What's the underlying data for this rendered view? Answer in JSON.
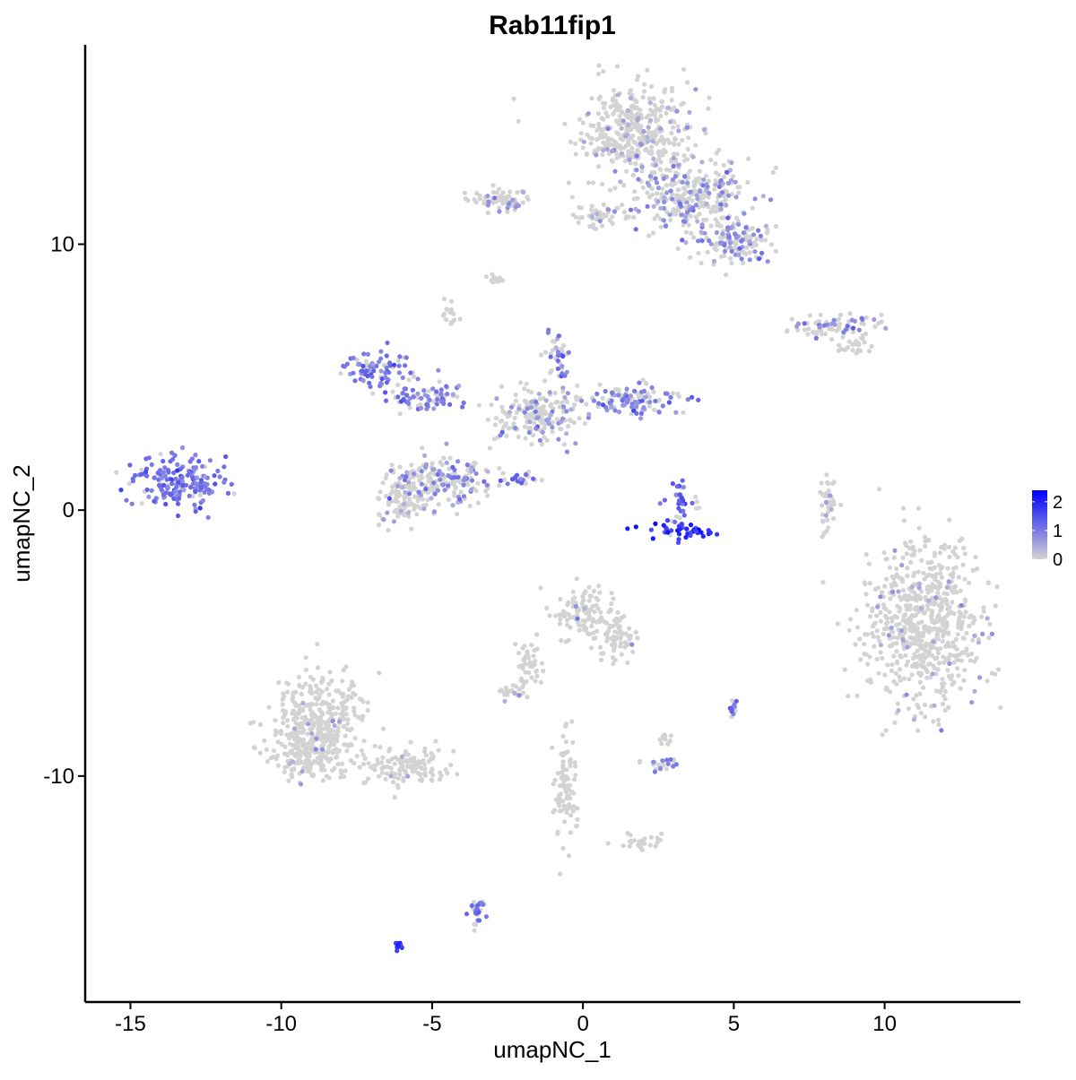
{
  "chart_data": {
    "type": "scatter",
    "title": "Rab11fip1",
    "xlabel": "umapNC_1",
    "ylabel": "umapNC_2",
    "xlim": [
      -16.5,
      14.5
    ],
    "ylim": [
      -18.5,
      17.5
    ],
    "x_ticks": [
      -15,
      -10,
      -5,
      0,
      5,
      10
    ],
    "y_ticks": [
      -10,
      0,
      10
    ],
    "x_tick_labels": [
      "-15",
      "-10",
      "-5",
      "0",
      "5",
      "10"
    ],
    "y_tick_labels": [
      "-10",
      "0",
      "10"
    ],
    "grid": false,
    "legend": {
      "position": "right",
      "type": "colorbar",
      "min": 0,
      "max": 2.4,
      "ticks": [
        0,
        1,
        2
      ],
      "tick_labels": [
        "0",
        "1",
        "2"
      ],
      "low_color": "#d3d3d3",
      "high_color": "#0000ff"
    },
    "point_color_low": "#d3d3d3",
    "point_color_high": "#0000ff",
    "clusters": [
      {
        "center": [
          1.8,
          14.2
        ],
        "spread": [
          1.3,
          1.2
        ],
        "expression": 0.45,
        "expressed_fraction": 0.12
      },
      {
        "center": [
          3.6,
          11.8
        ],
        "spread": [
          1.2,
          0.9
        ],
        "expression": 0.7,
        "expressed_fraction": 0.3
      },
      {
        "center": [
          5.0,
          10.1
        ],
        "spread": [
          0.9,
          0.6
        ],
        "expression": 0.8,
        "expressed_fraction": 0.35
      },
      {
        "center": [
          -2.7,
          11.7
        ],
        "spread": [
          0.7,
          0.35
        ],
        "expression": 0.7,
        "expressed_fraction": 0.12
      },
      {
        "center": [
          0.7,
          11.1
        ],
        "spread": [
          0.6,
          0.3
        ],
        "expression": 0.5,
        "expressed_fraction": 0.1
      },
      {
        "center": [
          8.4,
          6.9
        ],
        "spread": [
          1.1,
          0.25
        ],
        "expression": 0.8,
        "expressed_fraction": 0.35
      },
      {
        "center": [
          -6.8,
          5.3
        ],
        "spread": [
          0.7,
          0.5
        ],
        "expression": 1.0,
        "expressed_fraction": 0.75
      },
      {
        "center": [
          -5.1,
          4.2
        ],
        "spread": [
          0.8,
          0.35
        ],
        "expression": 1.0,
        "expressed_fraction": 0.6
      },
      {
        "center": [
          -4.6,
          1.2
        ],
        "spread": [
          1.1,
          0.6
        ],
        "expression": 0.8,
        "expressed_fraction": 0.35
      },
      {
        "center": [
          -5.9,
          0.4
        ],
        "spread": [
          0.6,
          0.7
        ],
        "expression": 0.5,
        "expressed_fraction": 0.08
      },
      {
        "center": [
          -1.4,
          3.6
        ],
        "spread": [
          1.0,
          0.7
        ],
        "expression": 0.7,
        "expressed_fraction": 0.25
      },
      {
        "center": [
          1.6,
          4.2
        ],
        "spread": [
          1.1,
          0.4
        ],
        "expression": 0.9,
        "expressed_fraction": 0.4
      },
      {
        "center": [
          -0.9,
          5.7
        ],
        "spread": [
          0.3,
          0.5
        ],
        "expression": 1.0,
        "expressed_fraction": 0.4
      },
      {
        "center": [
          -2.0,
          1.2
        ],
        "spread": [
          0.4,
          0.2
        ],
        "expression": 1.2,
        "expressed_fraction": 0.6
      },
      {
        "center": [
          -13.4,
          1.0
        ],
        "spread": [
          1.0,
          0.7
        ],
        "expression": 1.1,
        "expressed_fraction": 0.85
      },
      {
        "center": [
          3.3,
          -0.8
        ],
        "spread": [
          0.8,
          0.2
        ],
        "expression": 1.9,
        "expressed_fraction": 0.95
      },
      {
        "center": [
          3.3,
          0.4
        ],
        "spread": [
          0.3,
          0.5
        ],
        "expression": 1.3,
        "expressed_fraction": 0.6
      },
      {
        "center": [
          8.1,
          0.2
        ],
        "spread": [
          0.2,
          0.7
        ],
        "expression": 0.5,
        "expressed_fraction": 0.1
      },
      {
        "center": [
          11.3,
          -4.3
        ],
        "spread": [
          1.3,
          2.0
        ],
        "expression": 0.6,
        "expressed_fraction": 0.05
      },
      {
        "center": [
          0.1,
          -3.8
        ],
        "spread": [
          0.7,
          0.6
        ],
        "expression": 0.5,
        "expressed_fraction": 0.04
      },
      {
        "center": [
          1.1,
          -4.8
        ],
        "spread": [
          0.5,
          0.5
        ],
        "expression": 0.5,
        "expressed_fraction": 0.04
      },
      {
        "center": [
          -8.7,
          -7.8
        ],
        "spread": [
          1.0,
          1.2
        ],
        "expression": 0.5,
        "expressed_fraction": 0.03
      },
      {
        "center": [
          -9.1,
          -9.1
        ],
        "spread": [
          0.9,
          0.7
        ],
        "expression": 0.5,
        "expressed_fraction": 0.03
      },
      {
        "center": [
          -5.8,
          -9.6
        ],
        "spread": [
          1.0,
          0.5
        ],
        "expression": 0.4,
        "expressed_fraction": 0.02
      },
      {
        "center": [
          -2.5,
          -6.8
        ],
        "spread": [
          0.4,
          0.2
        ],
        "expression": 0.4,
        "expressed_fraction": 0.02
      },
      {
        "center": [
          2.6,
          -9.6
        ],
        "spread": [
          0.4,
          0.2
        ],
        "expression": 1.0,
        "expressed_fraction": 0.5
      },
      {
        "center": [
          5.0,
          -7.5
        ],
        "spread": [
          0.1,
          0.3
        ],
        "expression": 1.2,
        "expressed_fraction": 0.7
      },
      {
        "center": [
          -3.5,
          -15.0
        ],
        "spread": [
          0.2,
          0.5
        ],
        "expression": 1.1,
        "expressed_fraction": 0.6
      },
      {
        "center": [
          -6.1,
          -16.4
        ],
        "spread": [
          0.1,
          0.1
        ],
        "expression": 1.8,
        "expressed_fraction": 1.0
      },
      {
        "center": [
          1.9,
          -12.5
        ],
        "spread": [
          0.5,
          0.2
        ],
        "expression": 0.3,
        "expressed_fraction": 0.0
      },
      {
        "center": [
          -1.8,
          -5.8
        ],
        "spread": [
          0.3,
          0.6
        ],
        "expression": 0.3,
        "expressed_fraction": 0.0
      },
      {
        "center": [
          -0.6,
          -10.5
        ],
        "spread": [
          0.3,
          1.2
        ],
        "expression": 0.3,
        "expressed_fraction": 0.0
      },
      {
        "center": [
          -4.4,
          7.4
        ],
        "spread": [
          0.2,
          0.3
        ],
        "expression": 0.3,
        "expressed_fraction": 0.0
      },
      {
        "center": [
          -2.9,
          8.7
        ],
        "spread": [
          0.2,
          0.1
        ],
        "expression": 0.3,
        "expressed_fraction": 0.0
      },
      {
        "center": [
          8.9,
          6.2
        ],
        "spread": [
          0.5,
          0.2
        ],
        "expression": 0.3,
        "expressed_fraction": 0.0
      },
      {
        "center": [
          2.8,
          -8.6
        ],
        "spread": [
          0.15,
          0.2
        ],
        "expression": 0.3,
        "expressed_fraction": 0.0
      }
    ]
  }
}
